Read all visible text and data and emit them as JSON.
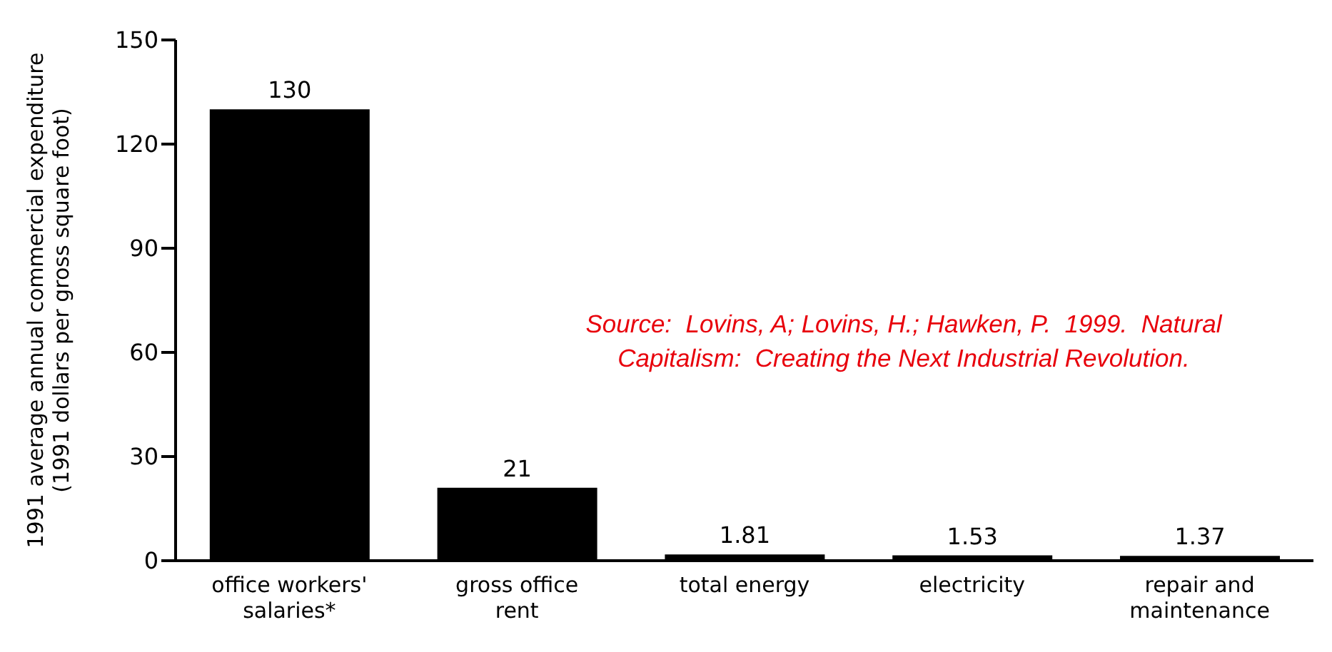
{
  "chart_data": {
    "type": "bar",
    "ylabel": "1991 average annual commercial expenditure (1991 dollars per gross square foot)",
    "categories": [
      "office workers' salaries*",
      "gross office rent",
      "total energy",
      "electricity",
      "repair and maintenance"
    ],
    "values": [
      130,
      21,
      1.81,
      1.53,
      1.37
    ],
    "color": "#000000",
    "ylim": [
      0,
      150
    ],
    "yticks": [
      0,
      30,
      60,
      90,
      120,
      150
    ],
    "grid": false,
    "legend": false,
    "data_labels": true,
    "annotations": [
      "Source:  Lovins, A; Lovins, H.; Hawken, P.  1999.  Natural Capitalism:  Creating the Next Industrial Revolution."
    ]
  }
}
